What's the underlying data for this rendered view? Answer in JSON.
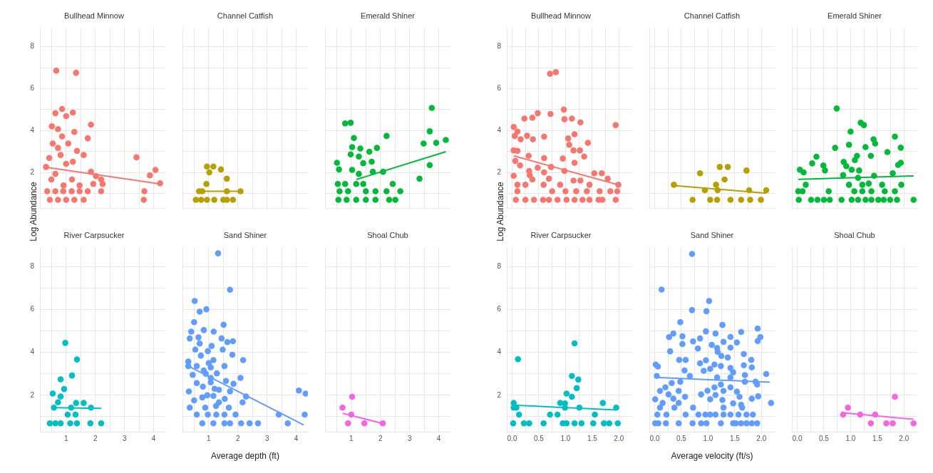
{
  "chart_data": [
    {
      "type": "scatter",
      "title": "Bullhead Minnow",
      "ylabel": "Log Abundance",
      "xlim": [
        0.1,
        4.4
      ],
      "xticks": [
        {
          "value": 0.5,
          "label": null
        },
        1,
        {
          "value": 1.5,
          "label": null
        },
        2,
        {
          "value": 2.5,
          "label": null
        },
        3,
        {
          "value": 3.5,
          "label": null
        },
        4
      ],
      "ylim": [
        0.3,
        8.9
      ],
      "yticks": [
        {
          "value": 1,
          "label": null
        },
        2,
        {
          "value": 3,
          "label": null
        },
        4,
        {
          "value": 5,
          "label": null
        },
        6,
        {
          "value": 7,
          "label": null
        },
        8
      ],
      "grid": true,
      "marker": "circle",
      "tick_labels": "y",
      "series": [
        {
          "color": "#f8766d",
          "x": [
            0.66,
            1.34,
            0.86,
            0.63,
            1.23,
            1.0,
            0.51,
            1.85,
            0.72,
            1.28,
            0.86,
            1.74,
            0.54,
            1.07,
            0.72,
            1.37,
            1.6,
            0.42,
            3.41,
            0.81,
            1.23,
            0.31,
            1.0,
            4.06,
            1.85,
            0.63,
            3.87,
            2.02,
            0.49,
            1.2,
            2.2,
            4.22,
            1.93,
            0.91,
            1.46,
            2.25,
            0.35,
            0.63,
            0.9,
            1.19,
            1.46,
            1.74,
            2.2,
            3.68,
            0.44,
            0.72,
            1.0,
            1.28,
            1.6,
            3.66
          ],
          "values": [
            6.86,
            6.76,
            5.03,
            4.83,
            4.86,
            4.69,
            4.2,
            4.28,
            4.07,
            3.93,
            3.72,
            3.63,
            3.38,
            3.38,
            3.17,
            3.03,
            2.83,
            2.69,
            2.72,
            2.83,
            2.51,
            2.26,
            2.41,
            2.12,
            2.03,
            1.93,
            1.86,
            1.82,
            1.66,
            1.66,
            1.66,
            1.48,
            1.45,
            1.38,
            1.38,
            1.45,
            1.1,
            1.1,
            1.1,
            1.1,
            1.1,
            1.1,
            1.1,
            1.1,
            0.69,
            0.69,
            0.69,
            0.69,
            0.69,
            0.69
          ]
        },
        {
          "type": "line",
          "marker": "none",
          "color": "#f8766d",
          "x": [
            0.3,
            4.22
          ],
          "values": [
            2.25,
            1.45
          ]
        }
      ]
    },
    {
      "type": "scatter",
      "title": "Channel Catfish",
      "xlim": [
        0.1,
        4.4
      ],
      "xticks": [
        {
          "value": 0.5,
          "label": null
        },
        1,
        {
          "value": 1.5,
          "label": null
        },
        2,
        {
          "value": 2.5,
          "label": null
        },
        3,
        {
          "value": 3.5,
          "label": null
        },
        4
      ],
      "ylim": [
        0.3,
        8.9
      ],
      "yticks": [
        {
          "value": 1,
          "label": null
        },
        2,
        {
          "value": 3,
          "label": null
        },
        4,
        {
          "value": 5,
          "label": null
        },
        6,
        {
          "value": 7,
          "label": null
        },
        8
      ],
      "grid": true,
      "marker": "circle",
      "tick_labels": false,
      "series": [
        {
          "color": "#b79f00",
          "x": [
            0.94,
            1.16,
            1.02,
            1.42,
            1.62,
            0.92,
            0.67,
            0.78,
            1.62,
            2.09,
            0.56,
            0.74,
            0.94,
            1.19,
            1.5,
            1.62,
            1.83
          ],
          "values": [
            2.28,
            2.28,
            2.0,
            2.14,
            1.7,
            1.45,
            1.1,
            1.1,
            1.1,
            1.1,
            0.69,
            0.69,
            0.69,
            0.69,
            0.69,
            0.69,
            0.69
          ]
        },
        {
          "type": "line",
          "marker": "none",
          "color": "#b79f00",
          "x": [
            0.56,
            2.09
          ],
          "values": [
            1.1,
            1.1
          ]
        }
      ]
    },
    {
      "type": "scatter",
      "title": "Emerald Shiner",
      "xlim": [
        0.1,
        4.4
      ],
      "xticks": [
        {
          "value": 0.5,
          "label": null
        },
        1,
        {
          "value": 1.5,
          "label": null
        },
        2,
        {
          "value": 2.5,
          "label": null
        },
        3,
        {
          "value": 3.5,
          "label": null
        },
        4
      ],
      "ylim": [
        0.3,
        8.9
      ],
      "yticks": [
        {
          "value": 1,
          "label": null
        },
        2,
        {
          "value": 3,
          "label": null
        },
        4,
        {
          "value": 5,
          "label": null
        },
        6,
        {
          "value": 7,
          "label": null
        },
        8
      ],
      "grid": true,
      "marker": "circle",
      "tick_labels": false,
      "series": [
        {
          "color": "#00ba38",
          "x": [
            3.76,
            0.79,
            0.98,
            3.69,
            1.09,
            2.21,
            4.24,
            3.48,
            3.91,
            1.88,
            1.03,
            1.31,
            1.62,
            0.98,
            1.26,
            1.7,
            0.51,
            1.41,
            3.69,
            0.58,
            1.03,
            1.74,
            2.09,
            1.26,
            3.34,
            0.54,
            0.79,
            1.17,
            1.41,
            2.42,
            0.6,
            0.89,
            1.5,
            1.83,
            2.21,
            2.68,
            0.56,
            0.84,
            1.17,
            1.5,
            1.83,
            2.3,
            2.51
          ],
          "values": [
            5.08,
            4.34,
            4.37,
            3.96,
            3.64,
            3.74,
            3.55,
            3.38,
            3.41,
            3.17,
            3.21,
            3.14,
            2.99,
            2.86,
            2.76,
            2.51,
            2.46,
            2.44,
            2.35,
            2.14,
            2.12,
            2.03,
            2.03,
            1.93,
            1.7,
            1.45,
            1.45,
            1.45,
            1.45,
            1.45,
            1.1,
            1.1,
            1.1,
            1.1,
            1.1,
            1.1,
            0.69,
            0.69,
            0.69,
            0.69,
            0.69,
            0.69,
            0.69
          ]
        },
        {
          "type": "line",
          "marker": "none",
          "color": "#00ba38",
          "x": [
            1.17,
            4.24
          ],
          "values": [
            1.66,
            2.99
          ]
        }
      ]
    },
    {
      "type": "scatter",
      "title": "River Carpsucker",
      "xlim": [
        0.1,
        4.4
      ],
      "xticks": [
        {
          "value": 0.5,
          "label": null
        },
        1,
        {
          "value": 1.5,
          "label": null
        },
        2,
        {
          "value": 2.5,
          "label": null
        },
        3,
        {
          "value": 3.5,
          "label": null
        },
        4
      ],
      "ylim": [
        0.3,
        8.9
      ],
      "yticks": [
        {
          "value": 1,
          "label": null
        },
        2,
        {
          "value": 3,
          "label": null
        },
        4,
        {
          "value": 5,
          "label": null
        },
        6,
        {
          "value": 7,
          "label": null
        },
        8
      ],
      "grid": true,
      "marker": "circle",
      "series": [
        {
          "color": "#00bfc4",
          "x": [
            0.97,
            1.37,
            1.2,
            0.81,
            0.93,
            0.54,
            0.81,
            0.72,
            1.34,
            1.6,
            0.58,
            1.17,
            1.85,
            1.05,
            1.32,
            0.44,
            0.63,
            0.81,
            1.14,
            1.37,
            1.83,
            2.2
          ],
          "values": [
            4.44,
            3.67,
            2.92,
            2.74,
            2.29,
            2.08,
            1.94,
            1.67,
            1.64,
            1.64,
            1.42,
            1.42,
            1.42,
            1.1,
            1.1,
            0.69,
            0.69,
            0.69,
            0.69,
            0.69,
            0.69,
            0.69
          ]
        },
        {
          "type": "line",
          "marker": "none",
          "color": "#00bfc4",
          "x": [
            0.54,
            2.2
          ],
          "values": [
            1.42,
            1.39
          ]
        }
      ]
    },
    {
      "type": "scatter",
      "title": "Sand Shiner",
      "xlabel": "Average depth (ft)",
      "xlim": [
        0.1,
        4.4
      ],
      "xticks": [
        {
          "value": 0.5,
          "label": null
        },
        1,
        {
          "value": 1.5,
          "label": null
        },
        2,
        {
          "value": 2.5,
          "label": null
        },
        3,
        {
          "value": 3.5,
          "label": null
        },
        4
      ],
      "ylim": [
        0.3,
        8.9
      ],
      "yticks": [
        {
          "value": 1,
          "label": null
        },
        2,
        {
          "value": 3,
          "label": null
        },
        4,
        {
          "value": 5,
          "label": null
        },
        6,
        {
          "value": 7,
          "label": null
        },
        8
      ],
      "grid": true,
      "marker": "circle",
      "tick_labels": "x",
      "series": [
        {
          "color": "#619cff",
          "x": [
            1.32,
            1.73,
            0.52,
            0.92,
            0.69,
            1.51,
            0.5,
            0.4,
            0.83,
            1.17,
            0.35,
            0.69,
            1.44,
            1.83,
            1.64,
            0.54,
            0.97,
            1.48,
            1.81,
            0.73,
            1.16,
            0.3,
            2.18,
            0.59,
            1.07,
            1.54,
            0.3,
            0.83,
            1.28,
            0.45,
            1.07,
            2.09,
            1.59,
            0.59,
            1.07,
            1.85,
            1.35,
            0.32,
            1.73,
            4.09,
            4.32,
            0.78,
            1.16,
            1.55,
            2.28,
            0.5,
            1.35,
            2.16,
            0.35,
            0.88,
            1.69,
            0.9,
            1.0,
            0.8,
            1.2,
            0.65,
            1.1,
            0.95,
            1.25,
            0.59,
            0.97,
            1.26,
            1.54,
            1.92,
            3.4,
            4.29,
            0.78,
            1.16,
            1.54,
            1.73,
            2.11,
            2.4,
            2.69,
            3.71
          ],
          "values": [
            8.62,
            6.92,
            6.4,
            6.01,
            5.9,
            5.29,
            5.41,
            4.97,
            5.04,
            4.97,
            4.65,
            4.41,
            4.65,
            4.52,
            4.48,
            4.13,
            4.06,
            4.13,
            3.89,
            3.85,
            3.64,
            3.57,
            3.64,
            3.36,
            3.3,
            3.36,
            3.36,
            3.16,
            3.02,
            2.95,
            2.81,
            2.81,
            2.67,
            2.57,
            2.6,
            2.53,
            2.25,
            2.18,
            2.18,
            2.22,
            2.08,
            1.9,
            1.97,
            1.83,
            1.94,
            1.76,
            1.67,
            1.67,
            1.42,
            1.42,
            1.42,
            3.0,
            3.5,
            2.4,
            2.3,
            4.7,
            4.3,
            2.0,
            1.5,
            1.1,
            1.1,
            1.1,
            1.1,
            1.1,
            1.1,
            1.1,
            0.69,
            0.69,
            0.69,
            0.69,
            0.69,
            0.69,
            0.69,
            0.69
          ]
        },
        {
          "type": "line",
          "marker": "none",
          "color": "#619cff",
          "x": [
            0.3,
            4.26
          ],
          "values": [
            3.36,
            0.61
          ]
        }
      ]
    },
    {
      "type": "scatter",
      "title": "Shoal Chub",
      "xlim": [
        0.1,
        4.4
      ],
      "xticks": [
        {
          "value": 0.5,
          "label": null
        },
        1,
        {
          "value": 1.5,
          "label": null
        },
        2,
        {
          "value": 2.5,
          "label": null
        },
        3,
        {
          "value": 3.5,
          "label": null
        },
        4
      ],
      "ylim": [
        0.3,
        8.9
      ],
      "yticks": [
        {
          "value": 1,
          "label": null
        },
        2,
        {
          "value": 3,
          "label": null
        },
        4,
        {
          "value": 5,
          "label": null
        },
        6,
        {
          "value": 7,
          "label": null
        },
        8
      ],
      "grid": true,
      "marker": "circle",
      "tick_labels": "x",
      "series": [
        {
          "color": "#f564e3",
          "x": [
            1.03,
            0.7,
            1.0,
            0.89,
            1.45,
            2.08
          ],
          "values": [
            1.93,
            1.42,
            1.1,
            0.69,
            0.69,
            0.69
          ]
        },
        {
          "type": "line",
          "marker": "none",
          "color": "#f564e3",
          "x": [
            0.7,
            2.08
          ],
          "values": [
            1.16,
            0.68
          ]
        }
      ]
    },
    {
      "type": "scatter",
      "title": "Bullhead Minnow",
      "ylabel": "Log Abundance",
      "xlim": [
        -0.1,
        2.25
      ],
      "xticks": [
        0,
        0.25,
        0.5,
        0.75,
        1,
        1.25,
        1.5,
        1.75,
        2
      ],
      "ylim": [
        0.3,
        8.9
      ],
      "yticks": [
        {
          "value": 1,
          "label": null
        },
        2,
        {
          "value": 3,
          "label": null
        },
        4,
        {
          "value": 5,
          "label": null
        },
        6,
        {
          "value": 7,
          "label": null
        },
        8
      ],
      "grid": true,
      "marker": "circle",
      "tick_labels": "y",
      "series": [
        {
          "color": "#f8766d",
          "x": [
            0.71,
            0.82,
            0.97,
            0.48,
            0.72,
            0.23,
            0.38,
            0.98,
            1.12,
            1.28,
            1.94,
            0.03,
            0.1,
            0.05,
            0.28,
            0.6,
            0.16,
            0.39,
            1.05,
            1.42,
            1.17,
            1.07,
            1.15,
            1.27,
            0.03,
            0.1,
            1.35,
            0.31,
            0.6,
            0.95,
            0.06,
            1.17,
            0.15,
            0.73,
            0.48,
            0.32,
            0.6,
            0.98,
            0.03,
            0.33,
            1.54,
            1.68,
            0.38,
            0.69,
            1.15,
            1.28,
            1.79,
            0.1,
            0.25,
            0.59,
            0.9,
            1.45,
            1.99,
            0.1,
            0.75,
            1.0,
            1.2,
            1.4,
            1.64,
            1.84,
            1.97,
            0.07,
            0.25,
            0.41,
            0.58,
            0.69,
            0.85,
            1.02,
            1.17,
            1.32,
            1.45,
            1.62,
            1.69,
            1.94
          ],
          "values": [
            6.71,
            6.79,
            5.0,
            4.83,
            4.79,
            4.57,
            4.61,
            4.54,
            4.57,
            4.39,
            4.26,
            4.17,
            3.95,
            3.74,
            3.75,
            3.71,
            3.58,
            3.58,
            3.62,
            3.41,
            3.82,
            3.32,
            3.05,
            3.05,
            3.05,
            3.03,
            2.76,
            2.79,
            2.68,
            2.66,
            2.55,
            2.46,
            2.33,
            2.26,
            2.22,
            2.07,
            2.0,
            2.07,
            1.84,
            1.87,
            1.96,
            1.96,
            1.66,
            1.7,
            1.61,
            1.61,
            1.7,
            1.41,
            1.41,
            1.41,
            1.41,
            1.41,
            1.41,
            1.1,
            1.1,
            1.1,
            1.1,
            1.1,
            1.1,
            1.1,
            1.1,
            0.69,
            0.69,
            0.69,
            0.69,
            0.69,
            0.69,
            0.69,
            0.69,
            0.69,
            0.69,
            0.69,
            0.69,
            0.69
          ]
        },
        {
          "type": "line",
          "marker": "none",
          "color": "#f8766d",
          "x": [
            0.03,
            2.04
          ],
          "values": [
            2.79,
            1.37
          ]
        }
      ]
    },
    {
      "type": "scatter",
      "title": "Channel Catfish",
      "xlim": [
        -0.1,
        2.25
      ],
      "xticks": [
        0,
        0.25,
        0.5,
        0.75,
        1,
        1.25,
        1.5,
        1.75,
        2
      ],
      "ylim": [
        0.3,
        8.9
      ],
      "yticks": [
        {
          "value": 1,
          "label": null
        },
        2,
        {
          "value": 3,
          "label": null
        },
        4,
        {
          "value": 5,
          "label": null
        },
        6,
        {
          "value": 7,
          "label": null
        },
        8
      ],
      "grid": true,
      "marker": "circle",
      "tick_labels": false,
      "series": [
        {
          "color": "#b79f00",
          "x": [
            1.22,
            1.37,
            1.72,
            0.85,
            1.31,
            0.36,
            1.15,
            0.94,
            1.18,
            1.77,
            2.09,
            0.71,
            1.04,
            1.17,
            1.42,
            1.62,
            1.79,
            1.99
          ],
          "values": [
            2.26,
            2.26,
            2.09,
            1.96,
            1.66,
            1.41,
            1.41,
            1.15,
            1.15,
            1.15,
            1.15,
            0.69,
            0.69,
            0.69,
            0.69,
            0.69,
            0.69,
            0.69
          ]
        },
        {
          "type": "line",
          "marker": "none",
          "color": "#b79f00",
          "x": [
            0.36,
            2.09
          ],
          "values": [
            1.37,
            1.01
          ]
        }
      ]
    },
    {
      "type": "scatter",
      "title": "Emerald Shiner",
      "xlim": [
        -0.1,
        2.25
      ],
      "xticks": [
        0,
        0.25,
        0.5,
        0.75,
        1,
        1.25,
        1.5,
        1.75,
        2
      ],
      "ylim": [
        0.3,
        8.9
      ],
      "yticks": [
        {
          "value": 1,
          "label": null
        },
        2,
        {
          "value": 3,
          "label": null
        },
        4,
        {
          "value": 5,
          "label": null
        },
        6,
        {
          "value": 7,
          "label": null
        },
        8
      ],
      "grid": true,
      "marker": "circle",
      "tick_labels": false,
      "series": [
        {
          "color": "#00ba38",
          "x": [
            0.74,
            1.19,
            1.25,
            1.0,
            1.83,
            1.43,
            1.46,
            0.97,
            0.71,
            1.28,
            1.94,
            1.69,
            1.38,
            1.12,
            0.36,
            1.08,
            0.28,
            0.87,
            0.92,
            1.94,
            0.49,
            1.89,
            0.05,
            0.12,
            0.52,
            1.02,
            1.16,
            0.86,
            1.44,
            1.79,
            1.14,
            0.16,
            0.97,
            1.34,
            1.59,
            1.95,
            1.22,
            0.02,
            0.1,
            0.59,
            1.07,
            1.22,
            1.39,
            1.64,
            1.83,
            0.03,
            0.26,
            0.38,
            0.5,
            0.61,
            0.83,
            1.02,
            1.14,
            1.28,
            1.39,
            1.52,
            1.62,
            1.74,
            1.87,
            2.18
          ],
          "values": [
            5.05,
            4.37,
            4.26,
            3.95,
            3.71,
            3.58,
            3.38,
            3.32,
            3.17,
            3.21,
            3.18,
            2.97,
            2.79,
            2.79,
            2.75,
            2.59,
            2.43,
            2.5,
            2.3,
            2.46,
            2.33,
            2.36,
            2.13,
            2.0,
            2.1,
            2.13,
            2.09,
            1.87,
            1.84,
            1.96,
            1.74,
            1.41,
            1.41,
            1.47,
            1.41,
            1.41,
            1.41,
            1.1,
            1.1,
            1.1,
            1.1,
            1.1,
            1.1,
            1.1,
            1.1,
            0.69,
            0.69,
            0.69,
            0.69,
            0.69,
            0.69,
            0.69,
            0.69,
            0.69,
            0.69,
            0.69,
            0.69,
            0.69,
            0.69,
            0.69
          ]
        },
        {
          "type": "line",
          "marker": "none",
          "color": "#00ba38",
          "x": [
            0.02,
            2.18
          ],
          "values": [
            1.67,
            1.83
          ]
        }
      ]
    },
    {
      "type": "scatter",
      "title": "River Carpsucker",
      "xlim": [
        -0.1,
        2.25
      ],
      "xticks": [
        {
          "value": 0,
          "label": "0.0"
        },
        {
          "value": 0.25,
          "label": null
        },
        0.5,
        {
          "value": 0.75,
          "label": null
        },
        {
          "value": 1,
          "label": "1.0"
        },
        {
          "value": 1.25,
          "label": null
        },
        1.5,
        {
          "value": 1.75,
          "label": null
        },
        {
          "value": 2,
          "label": "2.0"
        }
      ],
      "ylim": [
        0.3,
        8.9
      ],
      "yticks": [
        {
          "value": 1,
          "label": null
        },
        2,
        {
          "value": 3,
          "label": null
        },
        4,
        {
          "value": 5,
          "label": null
        },
        6,
        {
          "value": 7,
          "label": null
        },
        8
      ],
      "grid": true,
      "marker": "circle",
      "series": [
        {
          "color": "#00bfc4",
          "x": [
            1.17,
            0.11,
            1.12,
            1.24,
            1.21,
            1.02,
            1.12,
            0.03,
            0.9,
            0.99,
            1.7,
            0.03,
            0.08,
            0.99,
            1.26,
            1.95,
            0.13,
            0.71,
            0.85,
            1.55,
            0.02,
            0.22,
            0.32,
            0.59,
            0.95,
            1.02,
            1.17,
            1.3,
            1.52,
            1.72,
            1.82,
            1.98
          ],
          "values": [
            4.42,
            3.68,
            2.9,
            2.73,
            2.33,
            2.08,
            1.93,
            1.64,
            1.64,
            1.62,
            1.64,
            1.42,
            1.42,
            1.42,
            1.42,
            1.42,
            1.1,
            1.1,
            1.1,
            1.1,
            0.69,
            0.69,
            0.69,
            0.69,
            0.69,
            0.69,
            0.69,
            0.69,
            0.69,
            0.69,
            0.69,
            0.69
          ]
        },
        {
          "type": "line",
          "marker": "none",
          "color": "#00bfc4",
          "x": [
            0.02,
            1.95
          ],
          "values": [
            1.54,
            1.31
          ]
        }
      ]
    },
    {
      "type": "scatter",
      "title": "Sand Shiner",
      "xlabel": "Average velocity (ft/s)",
      "xlim": [
        -0.1,
        2.25
      ],
      "xticks": [
        {
          "value": 0,
          "label": "0.0"
        },
        {
          "value": 0.25,
          "label": null
        },
        0.5,
        {
          "value": 0.75,
          "label": null
        },
        {
          "value": 1,
          "label": "1.0"
        },
        {
          "value": 1.25,
          "label": null
        },
        1.5,
        {
          "value": 1.75,
          "label": null
        },
        {
          "value": 2,
          "label": "2.0"
        }
      ],
      "ylim": [
        0.3,
        8.9
      ],
      "yticks": [
        {
          "value": 1,
          "label": null
        },
        2,
        {
          "value": 3,
          "label": null
        },
        4,
        {
          "value": 5,
          "label": null
        },
        6,
        {
          "value": 7,
          "label": null
        },
        8
      ],
      "grid": true,
      "marker": "circle",
      "tick_labels": "x",
      "series": [
        {
          "color": "#619cff",
          "x": [
            0.7,
            0.13,
            1.02,
            0.7,
            0.97,
            1.27,
            0.48,
            1.93,
            1.62,
            0.96,
            1.14,
            0.35,
            0.27,
            0.52,
            1.42,
            1.98,
            1.93,
            0.85,
            0.72,
            0.52,
            1.29,
            1.54,
            1.07,
            1.17,
            1.42,
            0.81,
            0.29,
            1.18,
            1.67,
            1.25,
            1.37,
            0.46,
            0.58,
            1.81,
            0.96,
            0.02,
            0.06,
            0.85,
            1.12,
            1.24,
            1.42,
            1.67,
            1.82,
            0.56,
            0.92,
            1.04,
            1.47,
            0.66,
            0.04,
            1.69,
            2.09,
            1.17,
            1.42,
            0.48,
            0.32,
            1.69,
            1.89,
            1.24,
            0.2,
            1.12,
            1.42,
            1.92,
            0.1,
            0.45,
            0.99,
            1.29,
            1.54,
            0.87,
            0.26,
            0.57,
            1.14,
            1.59,
            1.94,
            0.01,
            0.35,
            1.04,
            1.27,
            1.82,
            2.18,
            0.15,
            0.45,
            1.47,
            1.62,
            0.1,
            0.37,
            0.72,
            1.29,
            1.64,
            0.05,
            0.22,
            0.58,
            0.82,
            0.95,
            1.04,
            1.14,
            1.29,
            1.42,
            1.57,
            1.72,
            1.84,
            0.01,
            0.07,
            0.21,
            0.45,
            0.71,
            0.87,
            0.97,
            1.24,
            1.47,
            1.52,
            1.62,
            1.72,
            1.82,
            1.92
          ],
          "values": [
            8.59,
            6.93,
            6.4,
            5.97,
            5.92,
            5.28,
            5.41,
            5.11,
            4.95,
            4.98,
            4.88,
            4.88,
            4.71,
            4.75,
            4.72,
            4.71,
            4.53,
            4.65,
            4.51,
            4.39,
            4.49,
            4.46,
            4.35,
            4.2,
            4.22,
            4.18,
            4.05,
            4.02,
            3.92,
            3.83,
            3.76,
            3.65,
            3.65,
            3.65,
            3.63,
            3.43,
            3.34,
            3.49,
            3.43,
            3.36,
            3.27,
            3.4,
            3.3,
            3.16,
            3.14,
            3.23,
            3.07,
            2.9,
            2.9,
            2.94,
            2.99,
            2.83,
            2.83,
            2.63,
            2.57,
            2.63,
            2.63,
            2.5,
            2.37,
            2.37,
            2.37,
            2.5,
            2.2,
            2.2,
            2.21,
            2.2,
            2.17,
            2.04,
            2.04,
            1.93,
            2.01,
            1.93,
            1.95,
            1.81,
            1.84,
            1.81,
            1.78,
            1.84,
            1.64,
            1.64,
            1.64,
            1.62,
            1.55,
            1.42,
            1.42,
            1.42,
            1.42,
            1.42,
            1.1,
            1.1,
            1.1,
            1.1,
            1.1,
            1.1,
            1.1,
            1.1,
            1.1,
            1.1,
            1.1,
            1.1,
            0.69,
            0.69,
            0.69,
            0.69,
            0.69,
            0.69,
            0.69,
            0.69,
            0.69,
            0.69,
            0.69,
            0.69,
            0.69,
            0.69
          ]
        },
        {
          "type": "line",
          "marker": "none",
          "color": "#619cff",
          "x": [
            0.01,
            2.16
          ],
          "values": [
            2.83,
            2.61
          ]
        }
      ]
    },
    {
      "type": "scatter",
      "title": "Shoal Chub",
      "xlim": [
        -0.1,
        2.25
      ],
      "xticks": [
        {
          "value": 0,
          "label": "0.0"
        },
        {
          "value": 0.25,
          "label": null
        },
        0.5,
        {
          "value": 0.75,
          "label": null
        },
        {
          "value": 1,
          "label": "1.0"
        },
        {
          "value": 1.25,
          "label": null
        },
        1.5,
        {
          "value": 1.75,
          "label": null
        },
        {
          "value": 2,
          "label": "2.0"
        }
      ],
      "ylim": [
        0.3,
        8.9
      ],
      "yticks": [
        {
          "value": 1,
          "label": null
        },
        2,
        {
          "value": 3,
          "label": null
        },
        4,
        {
          "value": 5,
          "label": null
        },
        6,
        {
          "value": 7,
          "label": null
        },
        8
      ],
      "grid": true,
      "marker": "circle",
      "tick_labels": "x",
      "series": [
        {
          "color": "#f564e3",
          "x": [
            1.83,
            0.95,
            0.86,
            1.18,
            1.46,
            1.38,
            1.67,
            1.79,
            2.18
          ],
          "values": [
            1.93,
            1.42,
            1.1,
            1.1,
            1.1,
            0.69,
            0.69,
            0.69,
            0.69
          ]
        },
        {
          "type": "line",
          "marker": "none",
          "color": "#f564e3",
          "x": [
            0.86,
            2.18
          ],
          "values": [
            1.18,
            0.88
          ]
        }
      ]
    }
  ]
}
